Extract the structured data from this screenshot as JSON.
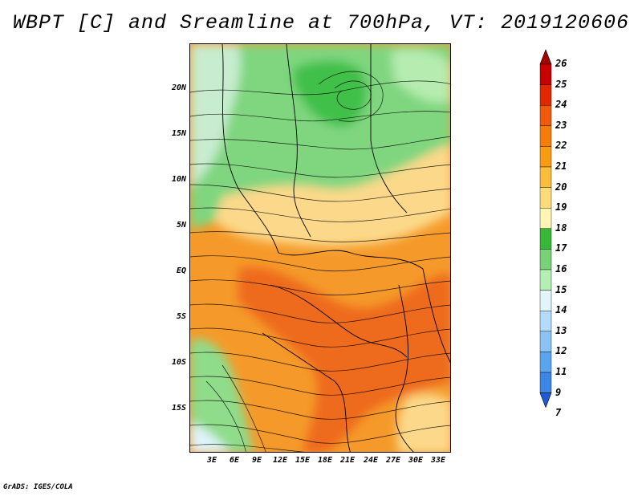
{
  "title": "WBPT [C] and Sreamline at 700hPa, VT: 2019120606",
  "credit": "GrADS: IGES/COLA",
  "lat_labels": [
    "20N",
    "15N",
    "10N",
    "5N",
    "EQ",
    "5S",
    "10S",
    "15S"
  ],
  "lon_labels": [
    "3E",
    "6E",
    "9E",
    "12E",
    "15E",
    "18E",
    "21E",
    "24E",
    "27E",
    "30E",
    "33E"
  ],
  "colorbar": {
    "levels": [
      "26",
      "25",
      "24",
      "23",
      "22",
      "21",
      "20",
      "19",
      "18",
      "17",
      "16",
      "15",
      "14",
      "13",
      "12",
      "11",
      "9",
      "7"
    ],
    "colors": [
      "#a50000",
      "#c80000",
      "#e12800",
      "#f05a0a",
      "#f57d0a",
      "#fa9b14",
      "#fabe3c",
      "#fcdc78",
      "#fff5b4",
      "#37b837",
      "#78d278",
      "#b4f0b4",
      "#e1f5fa",
      "#b4dcfa",
      "#8cc3f5",
      "#5aa5f0",
      "#3c87e6",
      "#1e5ad2"
    ]
  },
  "colors": {
    "green": "#7fd67f",
    "light_green": "#b6ecb0",
    "orange": "#f59a2a",
    "deep_orange": "#ee6b1b",
    "yellow": "#fcd98a",
    "pale_blue": "#dff4fb"
  }
}
